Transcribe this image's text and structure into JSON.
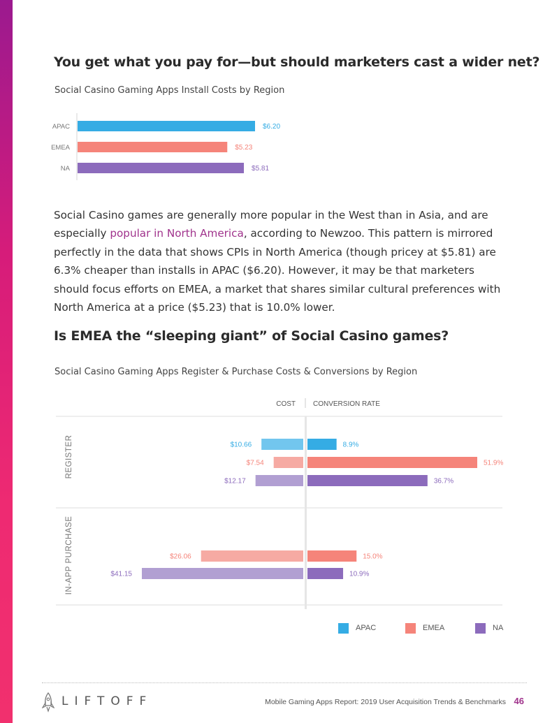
{
  "heading1": "You get what you pay for—but should marketers cast a wider net?",
  "heading2": "Is EMEA the “sleeping giant” of Social Casino games?",
  "paragraph": {
    "part1": "Social Casino games are generally more popular in the West than in Asia, and are especially ",
    "link": "popular in North America",
    "part2": ", according to Newzoo. This pattern is mirrored perfectly in the data that shows CPIs in North America (though pricey at $5.81) are 6.3% cheaper than installs in APAC ($6.20). However, it may be that marketers should focus efforts on EMEA, a market that shares similar cultural preferences with North America at a price ($5.23) that is 10.0% lower."
  },
  "colors": {
    "apac": "#35ace4",
    "emea": "#f5847a",
    "na": "#8c6bbc",
    "apac_light": "#72c6ee",
    "emea_light": "#f6aaa3",
    "na_light": "#b19fd2",
    "accent": "#a0338c"
  },
  "chart_data": [
    {
      "type": "bar",
      "orientation": "horizontal",
      "title": "Social Casino Gaming Apps Install Costs by Region",
      "categories": [
        "APAC",
        "EMEA",
        "NA"
      ],
      "values": [
        6.2,
        5.23,
        5.81
      ],
      "labels": [
        "$6.20",
        "$5.23",
        "$5.81"
      ],
      "xlim": [
        0,
        8
      ],
      "units": "USD"
    },
    {
      "type": "bar",
      "orientation": "diverging-horizontal",
      "title": "Social Casino Gaming Apps Register & Purchase Costs & Conversions by Region",
      "left_header": "COST",
      "right_header": "CONVERSION RATE",
      "series_names": [
        "APAC",
        "EMEA",
        "NA"
      ],
      "groups": [
        {
          "label": "REGISTER",
          "bars": [
            {
              "region": "APAC",
              "cost": 10.66,
              "cost_label": "$10.66",
              "conversion": 8.9,
              "conversion_label": "8.9%"
            },
            {
              "region": "EMEA",
              "cost": 7.54,
              "cost_label": "$7.54",
              "conversion": 51.9,
              "conversion_label": "51.9%"
            },
            {
              "region": "NA",
              "cost": 12.17,
              "cost_label": "$12.17",
              "conversion": 36.7,
              "conversion_label": "36.7%"
            }
          ]
        },
        {
          "label": "IN-APP PURCHASE",
          "bars": [
            {
              "region": "EMEA",
              "cost": 26.06,
              "cost_label": "$26.06",
              "conversion": 15.0,
              "conversion_label": "15.0%"
            },
            {
              "region": "NA",
              "cost": 41.15,
              "cost_label": "$41.15",
              "conversion": 10.9,
              "conversion_label": "10.9%"
            }
          ]
        }
      ],
      "cost_scale_max": 41.15,
      "conversion_scale_max": 51.9,
      "legend": [
        "APAC",
        "EMEA",
        "NA"
      ]
    }
  ],
  "footer": {
    "logo": "LIFTOFF",
    "report": "Mobile Gaming Apps Report: 2019 User Acquisition Trends & Benchmarks",
    "page": "46"
  }
}
